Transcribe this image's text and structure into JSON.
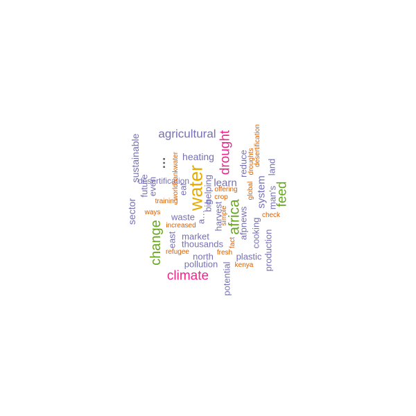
{
  "colors": {
    "purple": "#7570b3",
    "orange": "#d95f02",
    "pink": "#e7298a",
    "green": "#66a61e",
    "gold": "#e6ab02",
    "gray": "#666666"
  },
  "words": [
    "agricultural",
    "heating",
    "drought",
    "reduce",
    "desertification",
    "droughts",
    "global",
    "land",
    "sustainable",
    "sector",
    "future",
    "even",
    "eat",
    "produce",
    "worldbankwater",
    "water",
    "learn",
    "helping",
    "offering",
    "crop",
    "system",
    "man's",
    "feed",
    "training",
    "ways",
    "big",
    "harvest",
    "africa",
    "afpnews",
    "simple",
    "check",
    "a…",
    "waste",
    "increased",
    "change",
    "east",
    "market",
    "thousands",
    "fact",
    "cooking",
    "production",
    "refugee",
    "fresh",
    "north",
    "pollution",
    "plastic",
    "kenya",
    "potential",
    "climate",
    "…"
  ]
}
